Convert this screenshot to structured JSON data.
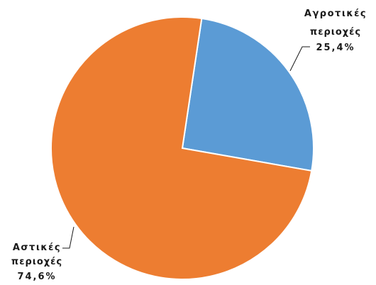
{
  "chart_data": {
    "type": "pie",
    "title": "",
    "start_angle_deg": 8.5,
    "slices": [
      {
        "name": "Αγροτικές περιοχές",
        "lines": [
          "Αγροτικές",
          "περιοχές"
        ],
        "value": 25.4,
        "value_label": "25,4%",
        "color": "#5b9bd5"
      },
      {
        "name": "Αστικές περιοχές",
        "lines": [
          "Αστικές",
          "περιοχές"
        ],
        "value": 74.6,
        "value_label": "74,6%",
        "color": "#ed7d31"
      }
    ]
  }
}
